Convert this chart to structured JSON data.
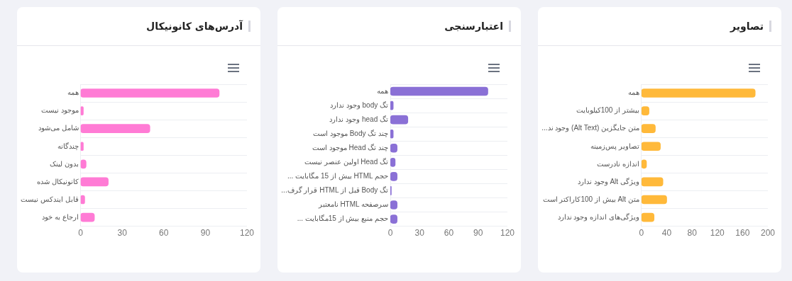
{
  "chart_data": [
    {
      "type": "bar",
      "orientation": "horizontal",
      "title": "تصاویر",
      "categories": [
        "همه",
        "بیشتر از 100کیلوبایت",
        "...وجود ند (Alt Text) متن جایگزین",
        "تصاویر پس‌زمینه",
        "اندازه نادرست",
        "وجود ندارد Alt ویژگی",
        "بیش از 100کاراکتر است Alt متن",
        "ویژگی‌های اندازه وجود ندارد"
      ],
      "values": [
        180,
        12,
        22,
        30,
        8,
        34,
        40,
        20
      ],
      "color": "#ffb93a",
      "xlim": [
        0,
        200
      ],
      "xticks": [
        0,
        40,
        80,
        120,
        160,
        200
      ],
      "grid": "y"
    },
    {
      "type": "bar",
      "orientation": "horizontal",
      "title": "اعتبارسنجی",
      "categories": [
        "همه",
        "وجود ندارد body تگ",
        "وجود ندارد head تگ",
        "موجود است Body چند تگ",
        "موجود است Head چند تگ",
        "اولین عنصر نیست Head تگ",
        "... بیش از 15 مگابایت HTML حجم",
        "...قرار گرف HTML قبل از Body تگ",
        "نامعتبر HTML سرصفحه",
        "... حجم منبع بیش از 15مگابایت"
      ],
      "values": [
        100,
        3,
        18,
        3,
        7,
        5,
        7,
        1,
        7,
        7
      ],
      "color": "#8a70d6",
      "xlim": [
        0,
        120
      ],
      "xticks": [
        0,
        30,
        60,
        90,
        120
      ],
      "grid": "y"
    },
    {
      "type": "bar",
      "orientation": "horizontal",
      "title": "آدرس‌های کانونیکال",
      "categories": [
        "همه",
        "موجود نیست",
        "شامل می‌شود",
        "چندگانه",
        "بدون لینک",
        "کانونیکال شده",
        "قابل ایندکس نیست",
        "ارجاع به خود"
      ],
      "values": [
        100,
        2,
        50,
        2,
        4,
        20,
        3,
        10
      ],
      "color": "#ff7bd5",
      "xlim": [
        0,
        120
      ],
      "xticks": [
        0,
        30,
        60,
        90,
        120
      ],
      "grid": "y"
    }
  ]
}
